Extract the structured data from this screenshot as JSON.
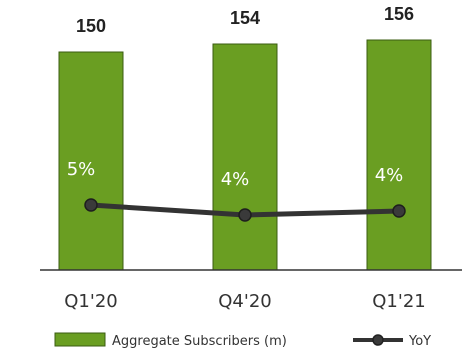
{
  "chart_data": {
    "type": "bar",
    "categories": [
      "Q1'20",
      "Q4'20",
      "Q1'21"
    ],
    "series": [
      {
        "name": "Aggregate Subscribers (m)",
        "type": "bar",
        "values": [
          150,
          154,
          156
        ],
        "value_labels": [
          "150",
          "154",
          "156"
        ],
        "color": "#6a9e22",
        "border_color": "#3b5c12"
      },
      {
        "name": "YoY",
        "type": "line",
        "values": [
          5,
          4,
          4
        ],
        "value_labels": [
          "5%",
          "4%",
          "4%"
        ],
        "color": "#333333"
      }
    ],
    "title": "",
    "xlabel": "",
    "ylabel": "",
    "grid": false,
    "legend": "bottom"
  }
}
